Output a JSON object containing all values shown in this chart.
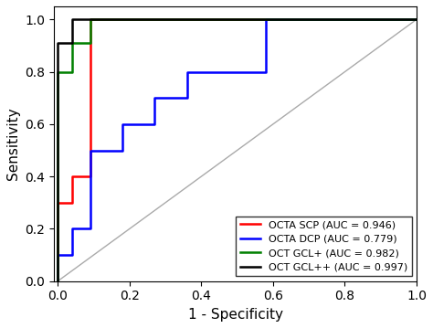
{
  "title": "",
  "xlabel": "1 - Specificity",
  "ylabel": "Sensitivity",
  "xlim": [
    -0.01,
    1.0
  ],
  "ylim": [
    0.0,
    1.05
  ],
  "diagonal_color": "#aaaaaa",
  "curves": [
    {
      "label": "OCTA SCP (AUC = 0.946)",
      "color": "red",
      "x": [
        0.0,
        0.0,
        0.04,
        0.04,
        0.09,
        0.09,
        1.0
      ],
      "y": [
        0.0,
        0.3,
        0.3,
        0.4,
        0.4,
        1.0,
        1.0
      ]
    },
    {
      "label": "OCTA DCP (AUC = 0.779)",
      "color": "blue",
      "x": [
        0.0,
        0.0,
        0.04,
        0.04,
        0.09,
        0.09,
        0.18,
        0.18,
        0.27,
        0.27,
        0.36,
        0.36,
        0.58,
        0.58,
        1.0
      ],
      "y": [
        0.0,
        0.1,
        0.1,
        0.2,
        0.2,
        0.5,
        0.5,
        0.6,
        0.6,
        0.7,
        0.7,
        0.8,
        0.8,
        1.0,
        1.0
      ]
    },
    {
      "label": "OCT GCL+ (AUC = 0.982)",
      "color": "green",
      "x": [
        0.0,
        0.0,
        0.04,
        0.04,
        0.09,
        0.09,
        1.0
      ],
      "y": [
        0.0,
        0.8,
        0.8,
        0.91,
        0.91,
        1.0,
        1.0
      ]
    },
    {
      "label": "OCT GCL++ (AUC = 0.997)",
      "color": "black",
      "x": [
        0.0,
        0.0,
        0.04,
        0.04,
        1.0
      ],
      "y": [
        0.0,
        0.91,
        0.91,
        1.0,
        1.0
      ]
    }
  ],
  "legend_loc": "lower right",
  "xticks": [
    0.0,
    0.2,
    0.4,
    0.6,
    0.8,
    1.0
  ],
  "yticks": [
    0.0,
    0.2,
    0.4,
    0.6,
    0.8,
    1.0
  ],
  "linewidth": 1.8
}
